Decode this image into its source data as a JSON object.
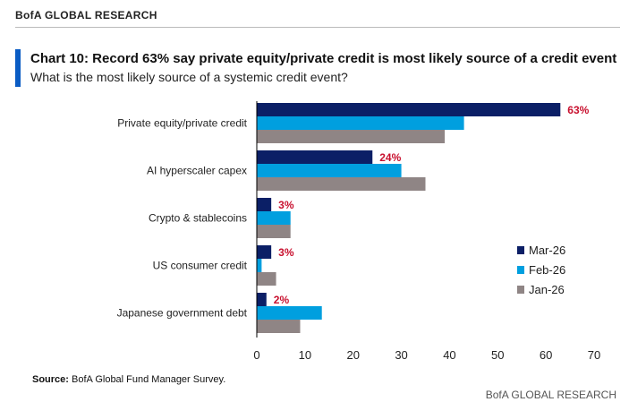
{
  "header": {
    "brand": "BofA GLOBAL RESEARCH"
  },
  "chart_data": {
    "type": "bar",
    "orientation": "horizontal",
    "title": "Chart 10: Record 63% say private equity/private credit is most likely source of a credit event",
    "subtitle": "What is the most likely source of a systemic credit event?",
    "categories": [
      "Private equity/private credit",
      "AI hyperscaler capex",
      "Crypto & stablecoins",
      "US consumer credit",
      "Japanese government debt"
    ],
    "series": [
      {
        "name": "Mar-26",
        "color": "#0b1f66",
        "values": [
          63,
          24,
          3,
          3,
          2
        ]
      },
      {
        "name": "Feb-26",
        "color": "#009fdf",
        "values": [
          43,
          30,
          7,
          1,
          13.5
        ]
      },
      {
        "name": "Jan-26",
        "color": "#8f8585",
        "values": [
          39,
          35,
          7,
          4,
          9
        ]
      }
    ],
    "data_labels": [
      "63%",
      "24%",
      "3%",
      "3%",
      "2%"
    ],
    "label_color": "#c8102e",
    "xlim": [
      0,
      70
    ],
    "xticks": [
      "0",
      "10",
      "20",
      "30",
      "40",
      "50",
      "60",
      "70"
    ],
    "legend": "right",
    "grid": false
  },
  "source": {
    "label": "Source:",
    "text": " BofA Global Fund Manager Survey."
  },
  "footer": {
    "brand": "BofA GLOBAL RESEARCH"
  }
}
